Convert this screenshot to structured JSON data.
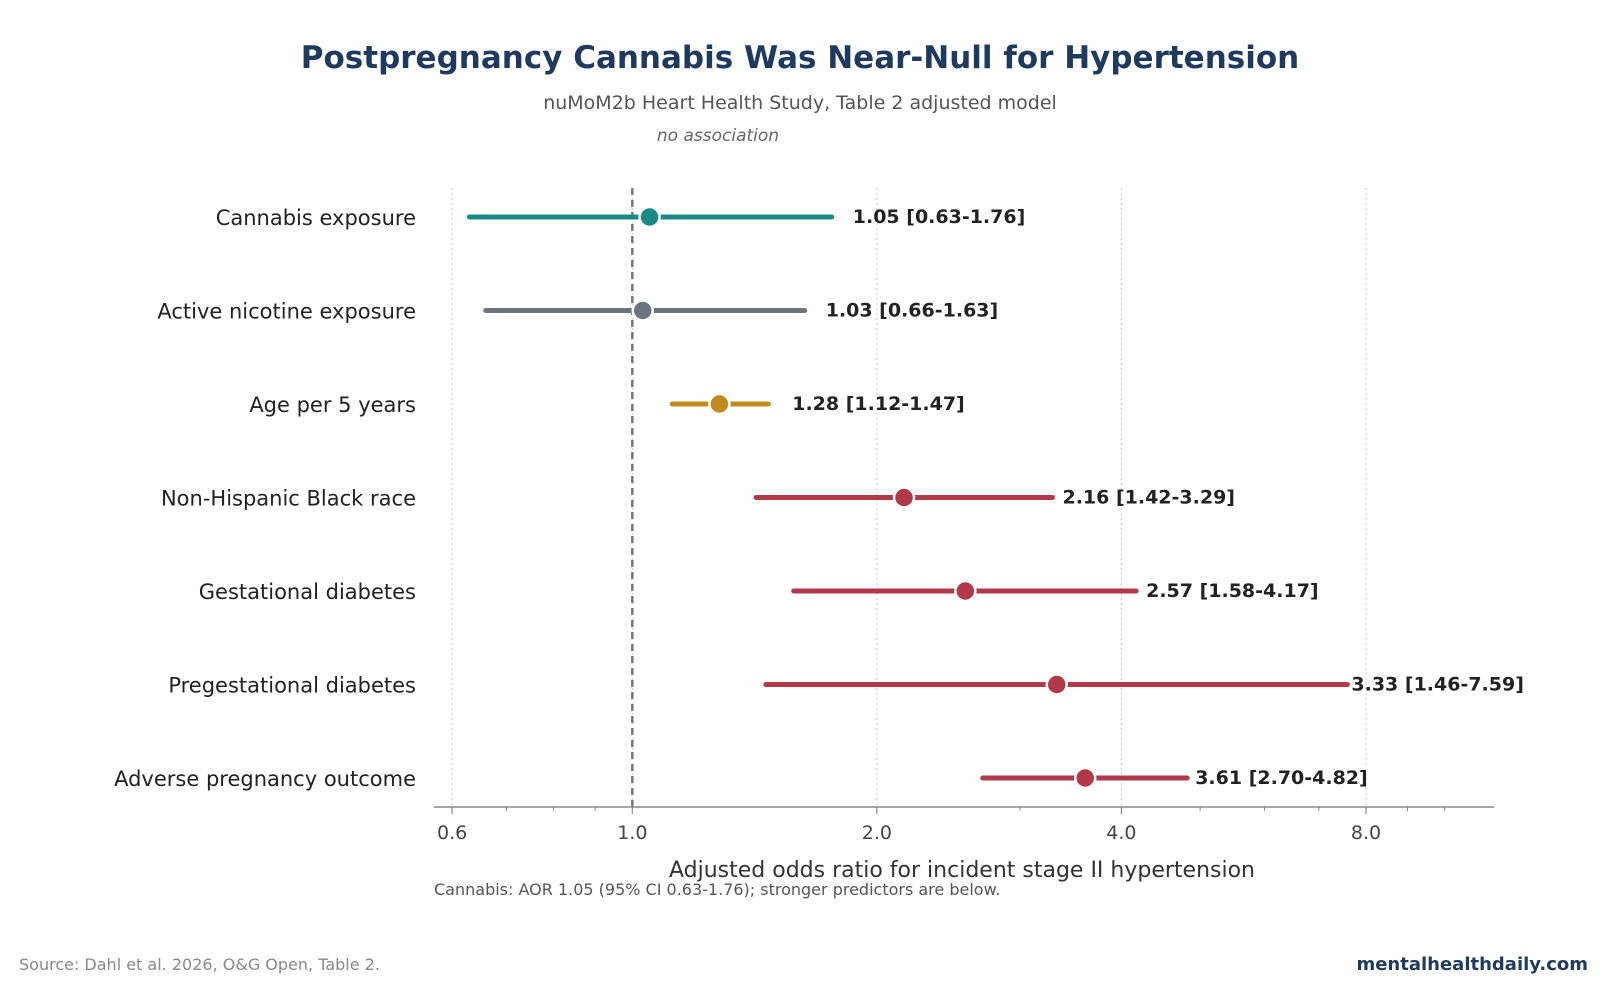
{
  "title": "Postpregnancy Cannabis Was Near-Null for Hypertension",
  "subtitle": "nuMoM2b Heart Health Study, Table 2 adjusted model",
  "annotation": "no association",
  "footnote": "Cannabis: AOR 1.05 (95% CI 0.63-1.76); stronger predictors are below.",
  "source": "Source: Dahl et al. 2026, O&G Open, Table 2.",
  "brand": "mentalhealthdaily.com",
  "colors": {
    "teal": "#1b8a86",
    "gray": "#6b7580",
    "gold": "#c08a1e",
    "red": "#b23a48",
    "title": "#1f3a5f"
  },
  "chart_data": {
    "type": "forest",
    "xscale": "log",
    "xlim": [
      0.57,
      11.5
    ],
    "xticks": [
      0.6,
      1.0,
      2.0,
      4.0,
      8.0
    ],
    "xtick_labels": [
      "0.6",
      "1.0",
      "2.0",
      "4.0",
      "8.0"
    ],
    "xlabel": "Adjusted odds ratio for incident stage II hypertension",
    "reference_line": 1.0,
    "grid": "vertical dotted",
    "rows": [
      {
        "label": "Cannabis exposure",
        "or": 1.05,
        "lo": 0.63,
        "hi": 1.76,
        "text": "1.05 [0.63-1.76]",
        "color": "#1b8a86"
      },
      {
        "label": "Active nicotine exposure",
        "or": 1.03,
        "lo": 0.66,
        "hi": 1.63,
        "text": "1.03 [0.66-1.63]",
        "color": "#6b7580"
      },
      {
        "label": "Age per 5 years",
        "or": 1.28,
        "lo": 1.12,
        "hi": 1.47,
        "text": "1.28 [1.12-1.47]",
        "color": "#c08a1e"
      },
      {
        "label": "Non-Hispanic Black race",
        "or": 2.16,
        "lo": 1.42,
        "hi": 3.29,
        "text": "2.16 [1.42-3.29]",
        "color": "#b23a48"
      },
      {
        "label": "Gestational diabetes",
        "or": 2.57,
        "lo": 1.58,
        "hi": 4.17,
        "text": "2.57 [1.58-4.17]",
        "color": "#b23a48"
      },
      {
        "label": "Pregestational diabetes",
        "or": 3.33,
        "lo": 1.46,
        "hi": 7.59,
        "text": "3.33 [1.46-7.59]",
        "color": "#b23a48"
      },
      {
        "label": "Adverse pregnancy outcome",
        "or": 3.61,
        "lo": 2.7,
        "hi": 4.82,
        "text": "3.61 [2.70-4.82]",
        "color": "#b23a48"
      }
    ]
  }
}
